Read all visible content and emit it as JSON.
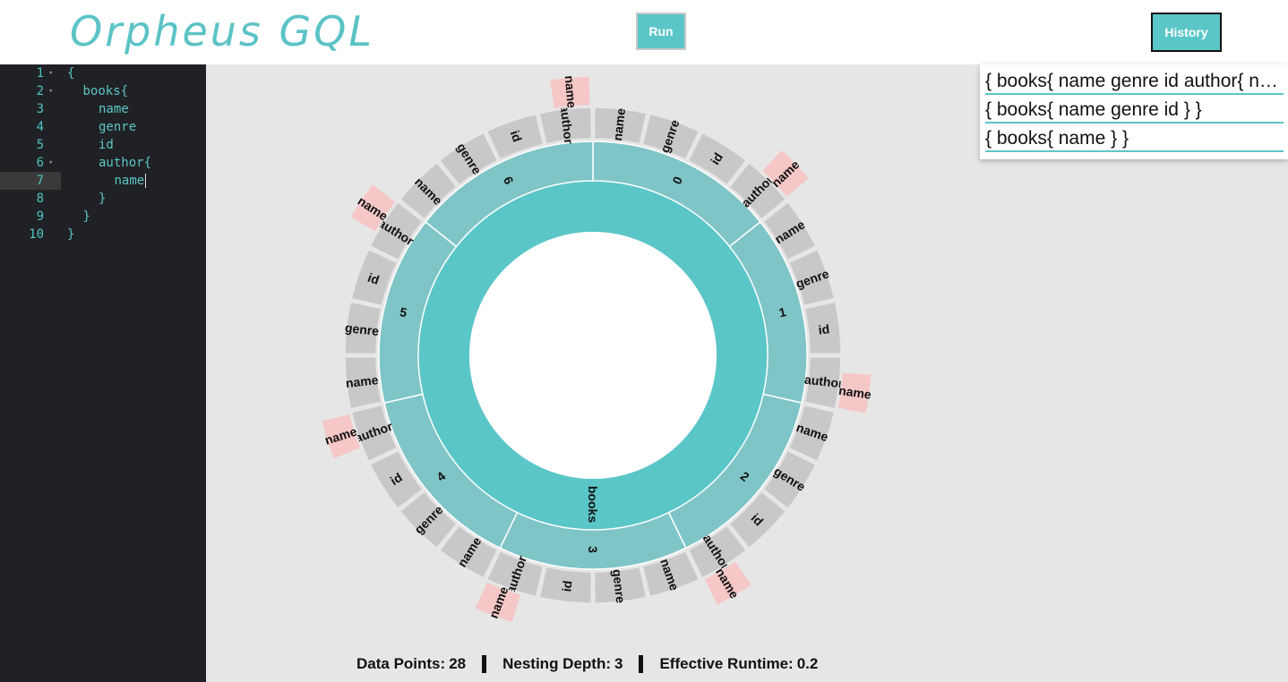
{
  "app": {
    "title": "Orpheus GQL",
    "run_label": "Run",
    "history_label": "History",
    "accent_color": "#5bc6c8"
  },
  "editor": {
    "active_line": 7,
    "lines": [
      {
        "num": "1",
        "text": "{",
        "indent": 0,
        "fold": true
      },
      {
        "num": "2",
        "text": "books{",
        "indent": 1,
        "fold": true
      },
      {
        "num": "3",
        "text": "name",
        "indent": 2,
        "fold": false
      },
      {
        "num": "4",
        "text": "genre",
        "indent": 2,
        "fold": false
      },
      {
        "num": "5",
        "text": "id",
        "indent": 2,
        "fold": false
      },
      {
        "num": "6",
        "text": "author{",
        "indent": 2,
        "fold": true
      },
      {
        "num": "7",
        "text": "name",
        "indent": 3,
        "fold": false
      },
      {
        "num": "8",
        "text": "}",
        "indent": 2,
        "fold": false
      },
      {
        "num": "9",
        "text": "}",
        "indent": 1,
        "fold": false
      },
      {
        "num": "10",
        "text": "}",
        "indent": 0,
        "fold": false
      }
    ]
  },
  "history": [
    "{ books{ name genre id author{ name } } }",
    "{ books{ name genre id } }",
    "{ books{ name } }"
  ],
  "stats": {
    "data_points_label": "Data Points:",
    "data_points_value": "28",
    "nesting_depth_label": "Nesting Depth:",
    "nesting_depth_value": "3",
    "runtime_label": "Effective Runtime:",
    "runtime_value": "0.2"
  },
  "sunburst": {
    "root": "books",
    "items": [
      "0",
      "1",
      "2",
      "3",
      "4",
      "5",
      "6"
    ],
    "fields": [
      "name",
      "genre",
      "id",
      "author"
    ],
    "nested_field": "name",
    "colors": {
      "root": "#5bc6c8",
      "item": "#7fc5c7",
      "field": "#c8c8c8",
      "nested": "#f6c7c7",
      "center": "#ffffff",
      "background": "#e6e6e6"
    }
  }
}
